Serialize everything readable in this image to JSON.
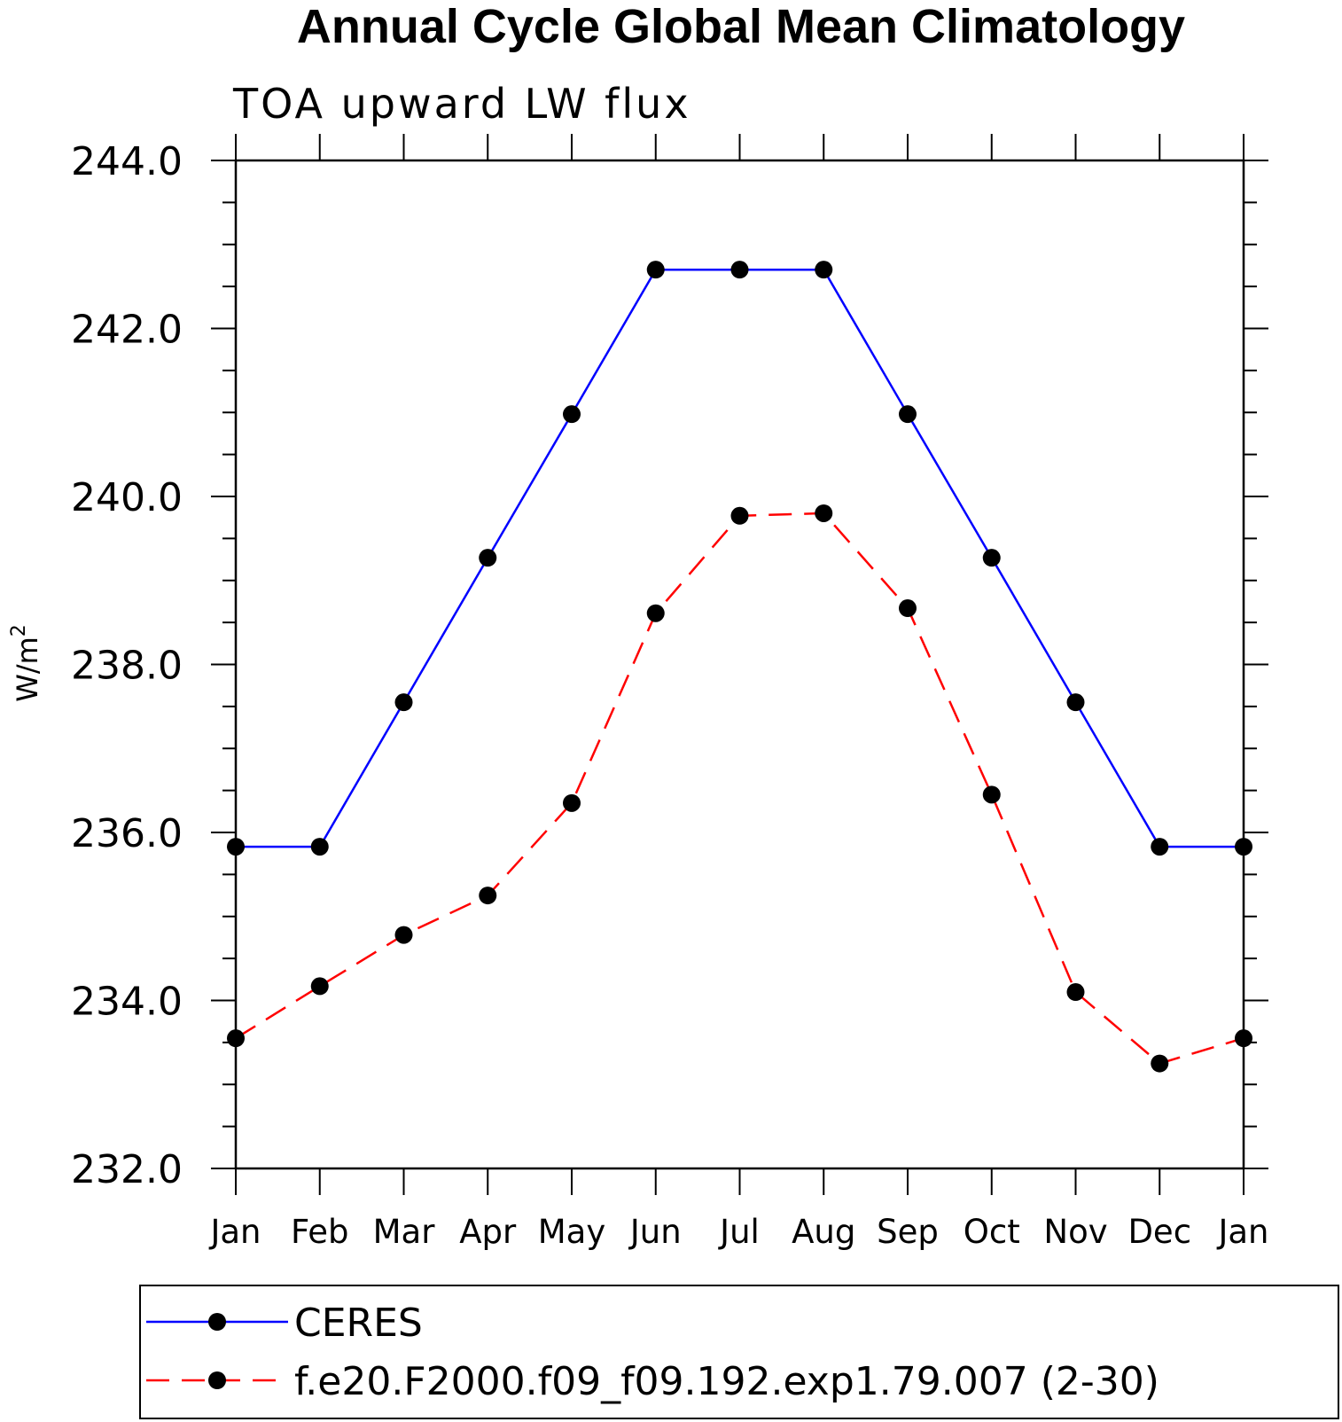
{
  "chart_data": {
    "type": "line",
    "title": "Annual Cycle Global Mean Climatology",
    "subtitle": "TOA upward LW flux",
    "ylabel": "W/m",
    "ylabel_superscript": "2",
    "xlabel": "",
    "categories": [
      "Jan",
      "Feb",
      "Mar",
      "Apr",
      "May",
      "Jun",
      "Jul",
      "Aug",
      "Sep",
      "Oct",
      "Nov",
      "Dec",
      "Jan"
    ],
    "ylim": [
      232.0,
      244.0
    ],
    "yticks": [
      "232.0",
      "234.0",
      "236.0",
      "238.0",
      "240.0",
      "242.0",
      "244.0"
    ],
    "grid": false,
    "legend_position": "bottom",
    "series": [
      {
        "name": "CERES",
        "color": "#0000ff",
        "line_style": "solid",
        "marker": "filled-circle",
        "values": [
          235.83,
          235.83,
          237.55,
          239.27,
          240.98,
          242.7,
          242.7,
          242.7,
          240.98,
          239.27,
          237.55,
          235.83,
          235.83
        ]
      },
      {
        "name": "f.e20.F2000.f09_f09.192.exp1.79.007 (2-30)",
        "color": "#ff0000",
        "line_style": "dashed",
        "marker": "filled-circle",
        "values": [
          233.55,
          234.17,
          234.78,
          235.25,
          236.35,
          238.61,
          239.77,
          239.8,
          238.67,
          236.45,
          234.1,
          233.25,
          233.55
        ]
      }
    ]
  }
}
